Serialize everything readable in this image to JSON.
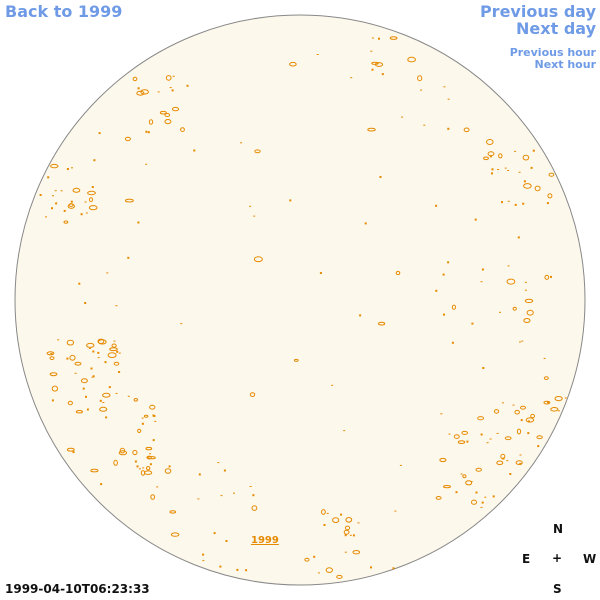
{
  "nav": {
    "back": "Back to 1999",
    "previous_day": "Previous day",
    "next_day": "Next day",
    "previous_hour": "Previous hour",
    "next_hour": "Next hour"
  },
  "timestamp": "1999-04-10T06:23:33",
  "year_label": "1999",
  "compass": {
    "north": "N",
    "east": "E",
    "west": "W",
    "south": "S",
    "center": "+"
  },
  "colors": {
    "link": "#6f9be6",
    "disk_fill": "#fdf8ec",
    "disk_edge": "#888888",
    "feature": "#e68a00"
  }
}
